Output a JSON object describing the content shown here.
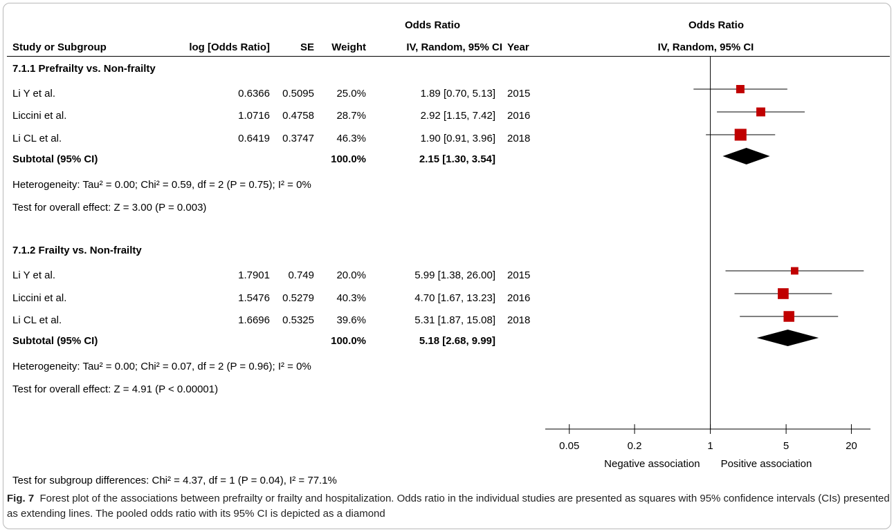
{
  "headers": {
    "odds_ratio_table": "Odds Ratio",
    "odds_ratio_plot": "Odds Ratio",
    "study": "Study or Subgroup",
    "logor": "log [Odds Ratio]",
    "se": "SE",
    "weight": "Weight",
    "ci": "IV, Random, 95% CI",
    "year": "Year",
    "plot_ci": "IV, Random, 95% CI"
  },
  "groups": [
    {
      "title": "7.1.1 Prefrailty vs. Non-frailty",
      "studies": [
        {
          "name": "Li Y et al.",
          "logor": "0.6366",
          "se": "0.5095",
          "weight": "25.0%",
          "ci": "1.89 [0.70, 5.13]",
          "year": "2015"
        },
        {
          "name": "Liccini et al.",
          "logor": "1.0716",
          "se": "0.4758",
          "weight": "28.7%",
          "ci": "2.92 [1.15, 7.42]",
          "year": "2016"
        },
        {
          "name": "Li CL et al.",
          "logor": "0.6419",
          "se": "0.3747",
          "weight": "46.3%",
          "ci": "1.90 [0.91, 3.96]",
          "year": "2018"
        }
      ],
      "subtotal": {
        "label": "Subtotal (95% CI)",
        "weight": "100.0%",
        "ci": "2.15 [1.30, 3.54]"
      },
      "heterogeneity": "Heterogeneity: Tau² = 0.00; Chi² = 0.59, df = 2 (P = 0.75); I² = 0%",
      "overall": "Test for overall effect: Z = 3.00 (P = 0.003)"
    },
    {
      "title": "7.1.2 Frailty vs. Non-frailty",
      "studies": [
        {
          "name": "Li Y et al.",
          "logor": "1.7901",
          "se": "0.749",
          "weight": "20.0%",
          "ci": "5.99 [1.38, 26.00]",
          "year": "2015"
        },
        {
          "name": "Liccini et al.",
          "logor": "1.5476",
          "se": "0.5279",
          "weight": "40.3%",
          "ci": "4.70 [1.67, 13.23]",
          "year": "2016"
        },
        {
          "name": "Li CL et al.",
          "logor": "1.6696",
          "se": "0.5325",
          "weight": "39.6%",
          "ci": "5.31 [1.87, 15.08]",
          "year": "2018"
        }
      ],
      "subtotal": {
        "label": "Subtotal (95% CI)",
        "weight": "100.0%",
        "ci": "5.18 [2.68, 9.99]"
      },
      "heterogeneity": "Heterogeneity: Tau² = 0.00; Chi² = 0.07, df = 2 (P = 0.96); I² = 0%",
      "overall": "Test for overall effect: Z = 4.91 (P < 0.00001)"
    }
  ],
  "subgroup_test": "Test for subgroup differences: Chi² = 4.37, df = 1 (P = 0.04), I² = 77.1%",
  "caption": {
    "label": "Fig. 7",
    "text": "Forest plot of the associations between prefrailty or frailty and hospitalization. Odds ratio in the individual studies are presented as squares with 95% confidence intervals (CIs) presented as extending lines. The pooled odds ratio with its 95% CI is depicted as a diamond"
  },
  "chart_data": {
    "type": "forest",
    "x_scale": "log",
    "xlim": [
      0.03,
      30
    ],
    "reference_line": 1,
    "ticks": [
      0.05,
      0.2,
      1,
      5,
      20
    ],
    "tick_labels": [
      "0.05",
      "0.2",
      "1",
      "5",
      "20"
    ],
    "left_label": "Negative association",
    "right_label": "Positive association",
    "marker_color": "#c00000",
    "diamond_color": "#000000",
    "series": [
      {
        "name": "7.1.1 Prefrailty vs. Non-frailty",
        "studies": [
          {
            "or": 1.89,
            "lo": 0.7,
            "hi": 5.13,
            "weight": 25.0
          },
          {
            "or": 2.92,
            "lo": 1.15,
            "hi": 7.42,
            "weight": 28.7
          },
          {
            "or": 1.9,
            "lo": 0.91,
            "hi": 3.96,
            "weight": 46.3
          }
        ],
        "pooled": {
          "or": 2.15,
          "lo": 1.3,
          "hi": 3.54
        }
      },
      {
        "name": "7.1.2 Frailty vs. Non-frailty",
        "studies": [
          {
            "or": 5.99,
            "lo": 1.38,
            "hi": 26.0,
            "weight": 20.0
          },
          {
            "or": 4.7,
            "lo": 1.67,
            "hi": 13.23,
            "weight": 40.3
          },
          {
            "or": 5.31,
            "lo": 1.87,
            "hi": 15.08,
            "weight": 39.6
          }
        ],
        "pooled": {
          "or": 5.18,
          "lo": 2.68,
          "hi": 9.99
        }
      }
    ]
  }
}
